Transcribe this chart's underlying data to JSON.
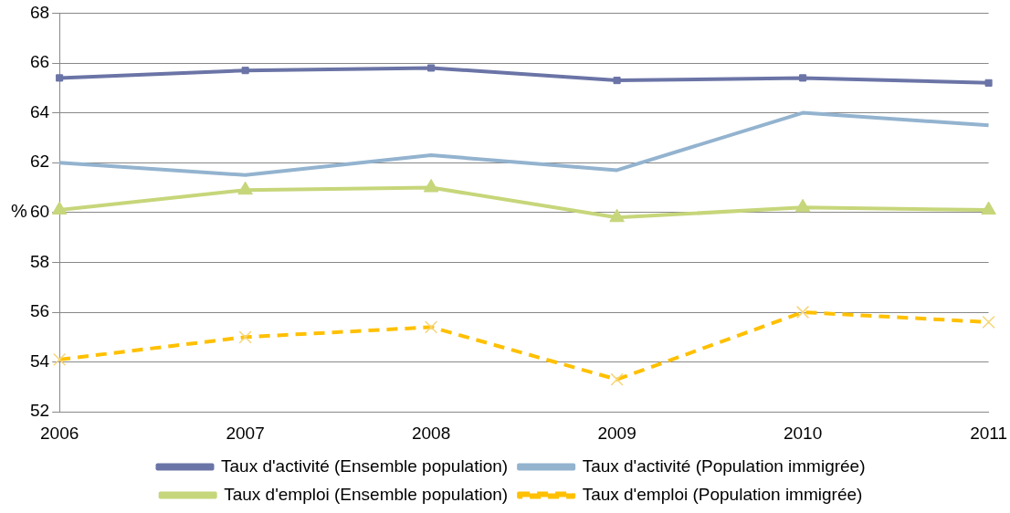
{
  "chart_data": {
    "type": "line",
    "ylabel": "%",
    "categories": [
      "2006",
      "2007",
      "2008",
      "2009",
      "2010",
      "2011"
    ],
    "series": [
      {
        "name": "Taux d'activité (Ensemble population)",
        "color": "#6b74a6",
        "marker": "square",
        "line_style": "solid",
        "values": [
          65.4,
          65.7,
          65.8,
          65.3,
          65.4,
          65.2
        ]
      },
      {
        "name": "Taux d'activité (Population immigrée)",
        "color": "#93b3cf",
        "marker": "none",
        "line_style": "solid",
        "values": [
          62.0,
          61.5,
          62.3,
          61.7,
          64.0,
          63.5
        ]
      },
      {
        "name": "Taux d'emploi (Ensemble population)",
        "color": "#c6d67a",
        "marker": "triangle",
        "line_style": "solid",
        "values": [
          60.1,
          60.9,
          61.0,
          59.8,
          60.2,
          60.1
        ]
      },
      {
        "name": "Taux d'emploi (Population immigrée)",
        "color": "#ffc000",
        "marker": "cross",
        "line_style": "dashed",
        "values": [
          54.1,
          55.0,
          55.4,
          53.3,
          56.0,
          55.6
        ]
      }
    ],
    "ylim": [
      52,
      68
    ],
    "yticks": [
      52,
      54,
      56,
      58,
      60,
      62,
      64,
      66,
      68
    ],
    "grid": "y",
    "legend": "bottom"
  }
}
